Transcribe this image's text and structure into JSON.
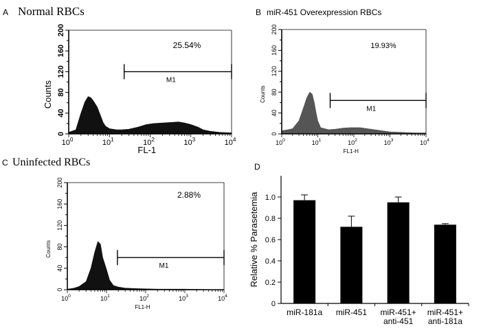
{
  "chart_data": [
    {
      "type": "area",
      "panel_label": "A",
      "title": "Normal RBCs",
      "xlabel": "FL-1",
      "ylabel": "Counts",
      "x_scale": "log",
      "xlim": [
        1,
        10000
      ],
      "ylim": [
        0,
        200
      ],
      "x_ticks": [
        "10",
        "10",
        "10",
        "10",
        "10"
      ],
      "x_tick_exponents": [
        "0",
        "1",
        "2",
        "3",
        "4"
      ],
      "y_ticks": [
        "0",
        "40",
        "80",
        "120",
        "160",
        "200"
      ],
      "gate": {
        "label": "M1",
        "x_start": 23,
        "x_end": 10000,
        "y": 120
      },
      "percentage": "25.54%",
      "fill_color": "#111111",
      "histogram": [
        [
          1,
          3
        ],
        [
          1.5,
          8
        ],
        [
          2,
          40
        ],
        [
          2.5,
          62
        ],
        [
          3,
          72
        ],
        [
          3.5,
          70
        ],
        [
          4,
          64
        ],
        [
          5,
          52
        ],
        [
          6,
          36
        ],
        [
          7,
          22
        ],
        [
          8,
          15
        ],
        [
          10,
          10
        ],
        [
          15,
          8
        ],
        [
          20,
          8
        ],
        [
          30,
          9
        ],
        [
          50,
          13
        ],
        [
          80,
          18
        ],
        [
          120,
          20
        ],
        [
          200,
          21
        ],
        [
          300,
          22
        ],
        [
          500,
          23
        ],
        [
          700,
          21
        ],
        [
          1000,
          18
        ],
        [
          1500,
          13
        ],
        [
          2000,
          8
        ],
        [
          3000,
          5
        ],
        [
          5000,
          3
        ],
        [
          10000,
          2
        ]
      ]
    },
    {
      "type": "area",
      "panel_label": "B",
      "title": "miR-451 Overexpression RBCs",
      "xlabel": "FL1-H",
      "ylabel": "Counts",
      "x_scale": "log",
      "xlim": [
        1,
        10000
      ],
      "ylim": [
        0,
        200
      ],
      "x_ticks": [
        "10",
        "10",
        "10",
        "10",
        "10"
      ],
      "x_tick_exponents": [
        "0",
        "1",
        "2",
        "3",
        "4"
      ],
      "y_ticks": [
        "0",
        "40",
        "80",
        "120",
        "160",
        "200"
      ],
      "gate": {
        "label": "M1",
        "x_start": 22,
        "x_end": 10000,
        "y": 64
      },
      "percentage": "19.93%",
      "fill_color": "#555555",
      "histogram": [
        [
          1,
          6
        ],
        [
          1.5,
          8
        ],
        [
          2,
          10
        ],
        [
          3,
          25
        ],
        [
          4,
          50
        ],
        [
          5,
          70
        ],
        [
          6,
          80
        ],
        [
          7,
          76
        ],
        [
          8,
          60
        ],
        [
          9,
          40
        ],
        [
          10,
          25
        ],
        [
          12,
          12
        ],
        [
          20,
          8
        ],
        [
          30,
          9
        ],
        [
          50,
          11
        ],
        [
          80,
          12
        ],
        [
          150,
          12
        ],
        [
          300,
          9
        ],
        [
          600,
          6
        ],
        [
          1000,
          4
        ],
        [
          2000,
          3
        ],
        [
          5000,
          2
        ],
        [
          10000,
          2
        ]
      ]
    },
    {
      "type": "area",
      "panel_label": "C",
      "title": "Uninfected RBCs",
      "xlabel": "FL1-H",
      "ylabel": "Counts",
      "x_scale": "log",
      "xlim": [
        1,
        10000
      ],
      "ylim": [
        0,
        200
      ],
      "x_ticks": [
        "10",
        "10",
        "10",
        "10",
        "10"
      ],
      "x_tick_exponents": [
        "0",
        "1",
        "2",
        "3",
        "4"
      ],
      "y_ticks": [
        "0",
        "40",
        "80",
        "120",
        "160",
        "200"
      ],
      "gate": {
        "label": "M1",
        "x_start": 19,
        "x_end": 10000,
        "y": 60
      },
      "percentage": "2.88%",
      "fill_color": "#111111",
      "histogram": [
        [
          1,
          1
        ],
        [
          1.5,
          3
        ],
        [
          2,
          6
        ],
        [
          3,
          15
        ],
        [
          4,
          40
        ],
        [
          5,
          70
        ],
        [
          6,
          90
        ],
        [
          7,
          85
        ],
        [
          8,
          60
        ],
        [
          10,
          38
        ],
        [
          12,
          18
        ],
        [
          15,
          8
        ],
        [
          20,
          5
        ],
        [
          30,
          3
        ],
        [
          60,
          2
        ],
        [
          200,
          1
        ],
        [
          1000,
          1
        ],
        [
          10000,
          0
        ]
      ]
    },
    {
      "type": "bar",
      "panel_label": "D",
      "ylabel": "Relative % Parasetemia",
      "categories": [
        [
          "miR-181a"
        ],
        [
          "miR-451"
        ],
        [
          "miR-451+",
          "anti-451"
        ],
        [
          "miR-451+",
          "anti-181a"
        ]
      ],
      "values": [
        0.97,
        0.72,
        0.95,
        0.74
      ],
      "errors": [
        0.05,
        0.1,
        0.05,
        0.01
      ],
      "ylim": [
        0,
        1.2
      ],
      "y_ticks": [
        "0",
        "0.2",
        "0.4",
        "0.6",
        "0.8",
        "1.0"
      ],
      "bar_color": "#000000"
    }
  ]
}
